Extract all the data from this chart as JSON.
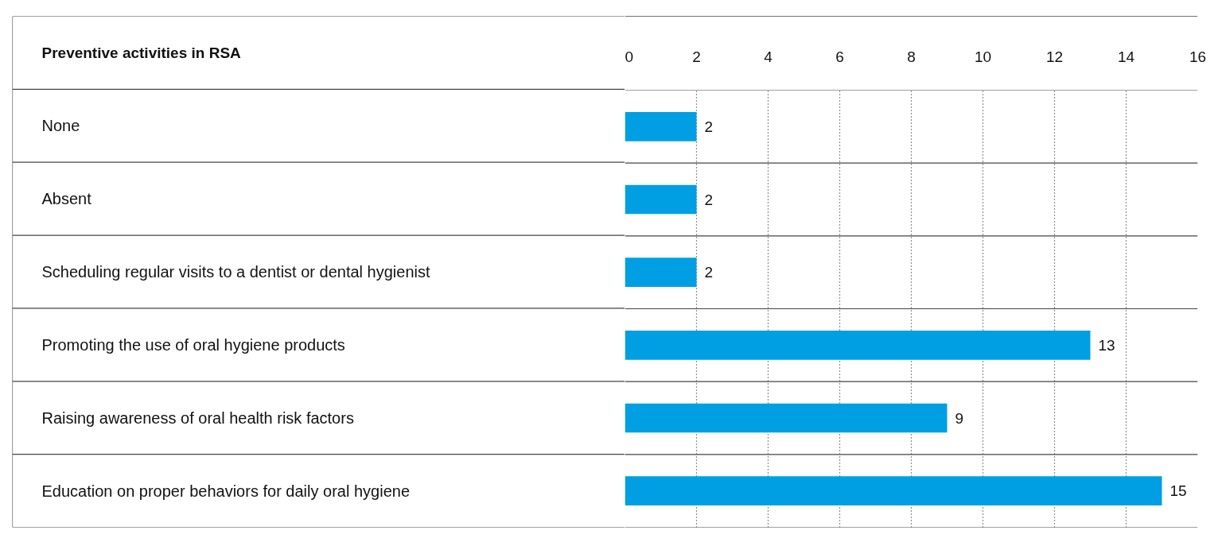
{
  "chart_data": {
    "type": "bar",
    "orientation": "horizontal",
    "title": "Preventive activities in RSA",
    "categories": [
      "None",
      "Absent",
      "Scheduling regular visits to a dentist or dental hygienist",
      "Promoting the use of oral hygiene products",
      "Raising awareness of oral health risk factors",
      "Education on proper behaviors for daily oral hygiene"
    ],
    "values": [
      2,
      2,
      2,
      13,
      9,
      15
    ],
    "data_labels": true,
    "color": "#009fe3",
    "x2lim": [
      0,
      16
    ],
    "x2ticks": [
      0,
      2,
      4,
      6,
      8,
      10,
      12,
      14,
      16
    ],
    "grid": "x"
  }
}
